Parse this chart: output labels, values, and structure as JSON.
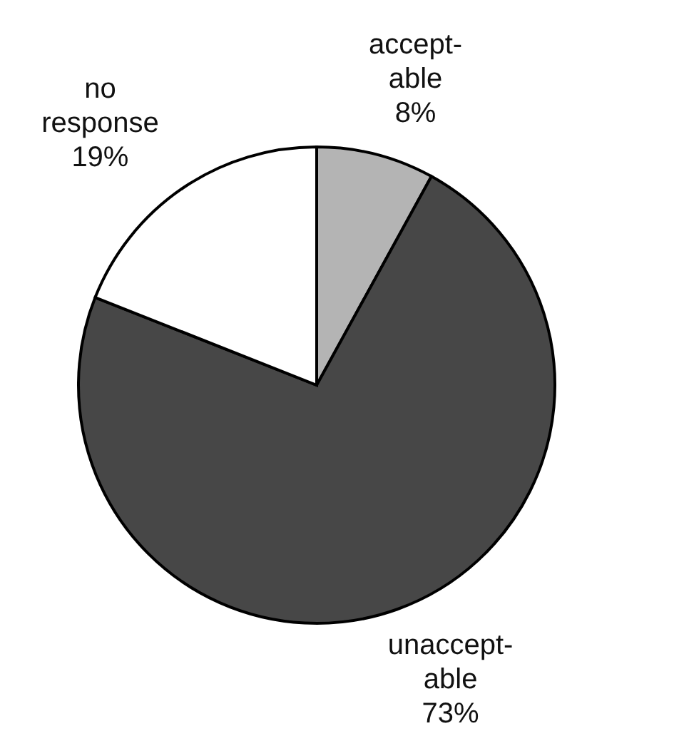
{
  "chart_data": {
    "type": "pie",
    "categories": [
      "accept-\nable",
      "unaccept-\nable",
      "no\nresponse"
    ],
    "values": [
      8,
      73,
      19
    ],
    "value_labels": [
      "8%",
      "73%",
      "19%"
    ],
    "colors": [
      "#b4b4b4",
      "#474747",
      "#ffffff"
    ]
  }
}
